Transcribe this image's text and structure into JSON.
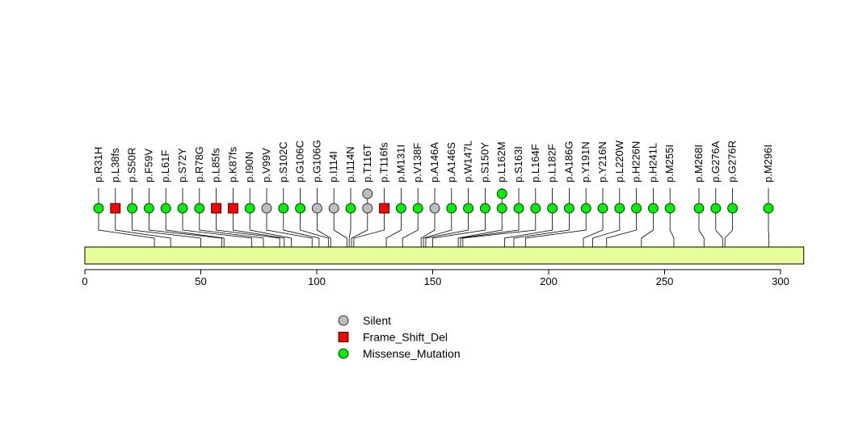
{
  "chart_data": {
    "type": "lollipop",
    "xlim": [
      0,
      310
    ],
    "ticks": [
      0,
      50,
      100,
      150,
      200,
      250,
      300
    ],
    "protein_length": 310,
    "colors": {
      "Silent": "#bebebe",
      "Frame_Shift_Del": "#ff0000",
      "Missense_Mutation": "#00ee00",
      "domain_fill": "#e6ff99"
    },
    "legend": [
      {
        "label": "Silent",
        "shape": "circle",
        "color": "#bebebe"
      },
      {
        "label": "Frame_Shift_Del",
        "shape": "square",
        "color": "#ff0000"
      },
      {
        "label": "Missense_Mutation",
        "shape": "circle",
        "color": "#00ee00"
      }
    ],
    "mutations": [
      {
        "label": "p.R31H",
        "pos": 30,
        "type": "Missense_Mutation",
        "count": 1
      },
      {
        "label": "p.L38fs",
        "pos": 37,
        "type": "Frame_Shift_Del",
        "count": 1
      },
      {
        "label": "p.S50R",
        "pos": 50,
        "type": "Missense_Mutation",
        "count": 1
      },
      {
        "label": "p.F59V",
        "pos": 59,
        "type": "Missense_Mutation",
        "count": 1
      },
      {
        "label": "p.L61F",
        "pos": 60,
        "type": "Missense_Mutation",
        "count": 1
      },
      {
        "label": "p.S72Y",
        "pos": 72,
        "type": "Missense_Mutation",
        "count": 1
      },
      {
        "label": "p.R78G",
        "pos": 77,
        "type": "Missense_Mutation",
        "count": 1
      },
      {
        "label": "p.L85fs",
        "pos": 84,
        "type": "Frame_Shift_Del",
        "count": 1
      },
      {
        "label": "p.K87fs",
        "pos": 86,
        "type": "Frame_Shift_Del",
        "count": 1
      },
      {
        "label": "p.I90N",
        "pos": 89,
        "type": "Missense_Mutation",
        "count": 1
      },
      {
        "label": "p.V99V",
        "pos": 98,
        "type": "Silent",
        "count": 1
      },
      {
        "label": "p.S102C",
        "pos": 101,
        "type": "Missense_Mutation",
        "count": 1
      },
      {
        "label": "p.G106C",
        "pos": 105,
        "type": "Missense_Mutation",
        "count": 1
      },
      {
        "label": "p.G106G",
        "pos": 106,
        "type": "Silent",
        "count": 1
      },
      {
        "label": "p.I114I",
        "pos": 113,
        "type": "Silent",
        "count": 1
      },
      {
        "label": "p.I114N",
        "pos": 114,
        "type": "Missense_Mutation",
        "count": 1
      },
      {
        "label": "p.T116T",
        "pos": 115,
        "type": "Silent",
        "count": 2
      },
      {
        "label": "p.T116fs",
        "pos": 116,
        "type": "Frame_Shift_Del",
        "count": 1
      },
      {
        "label": "p.M131I",
        "pos": 130,
        "type": "Missense_Mutation",
        "count": 1
      },
      {
        "label": "p.V138F",
        "pos": 137,
        "type": "Missense_Mutation",
        "count": 1
      },
      {
        "label": "p.A146A",
        "pos": 145,
        "type": "Silent",
        "count": 1
      },
      {
        "label": "p.A146S",
        "pos": 146,
        "type": "Missense_Mutation",
        "count": 1
      },
      {
        "label": "p.W147L",
        "pos": 147,
        "type": "Missense_Mutation",
        "count": 1
      },
      {
        "label": "p.S150Y",
        "pos": 150,
        "type": "Missense_Mutation",
        "count": 1
      },
      {
        "label": "p.L162M",
        "pos": 161,
        "type": "Missense_Mutation",
        "count": 2
      },
      {
        "label": "p.S163I",
        "pos": 162,
        "type": "Missense_Mutation",
        "count": 1
      },
      {
        "label": "p.L164F",
        "pos": 163,
        "type": "Missense_Mutation",
        "count": 1
      },
      {
        "label": "p.L182F",
        "pos": 181,
        "type": "Missense_Mutation",
        "count": 1
      },
      {
        "label": "p.A186G",
        "pos": 185,
        "type": "Missense_Mutation",
        "count": 1
      },
      {
        "label": "p.Y191N",
        "pos": 190,
        "type": "Missense_Mutation",
        "count": 1
      },
      {
        "label": "p.Y216N",
        "pos": 215,
        "type": "Missense_Mutation",
        "count": 1
      },
      {
        "label": "p.L220W",
        "pos": 219,
        "type": "Missense_Mutation",
        "count": 1
      },
      {
        "label": "p.H226N",
        "pos": 225,
        "type": "Missense_Mutation",
        "count": 1
      },
      {
        "label": "p.H241L",
        "pos": 240,
        "type": "Missense_Mutation",
        "count": 1
      },
      {
        "label": "p.M255I",
        "pos": 254,
        "type": "Missense_Mutation",
        "count": 1
      },
      {
        "label": "p.M268I",
        "pos": 267,
        "type": "Missense_Mutation",
        "count": 1
      },
      {
        "label": "p.G276A",
        "pos": 275,
        "type": "Missense_Mutation",
        "count": 1
      },
      {
        "label": "p.G276R",
        "pos": 276,
        "type": "Missense_Mutation",
        "count": 1
      },
      {
        "label": "p.M296I",
        "pos": 295,
        "type": "Missense_Mutation",
        "count": 1
      }
    ]
  }
}
